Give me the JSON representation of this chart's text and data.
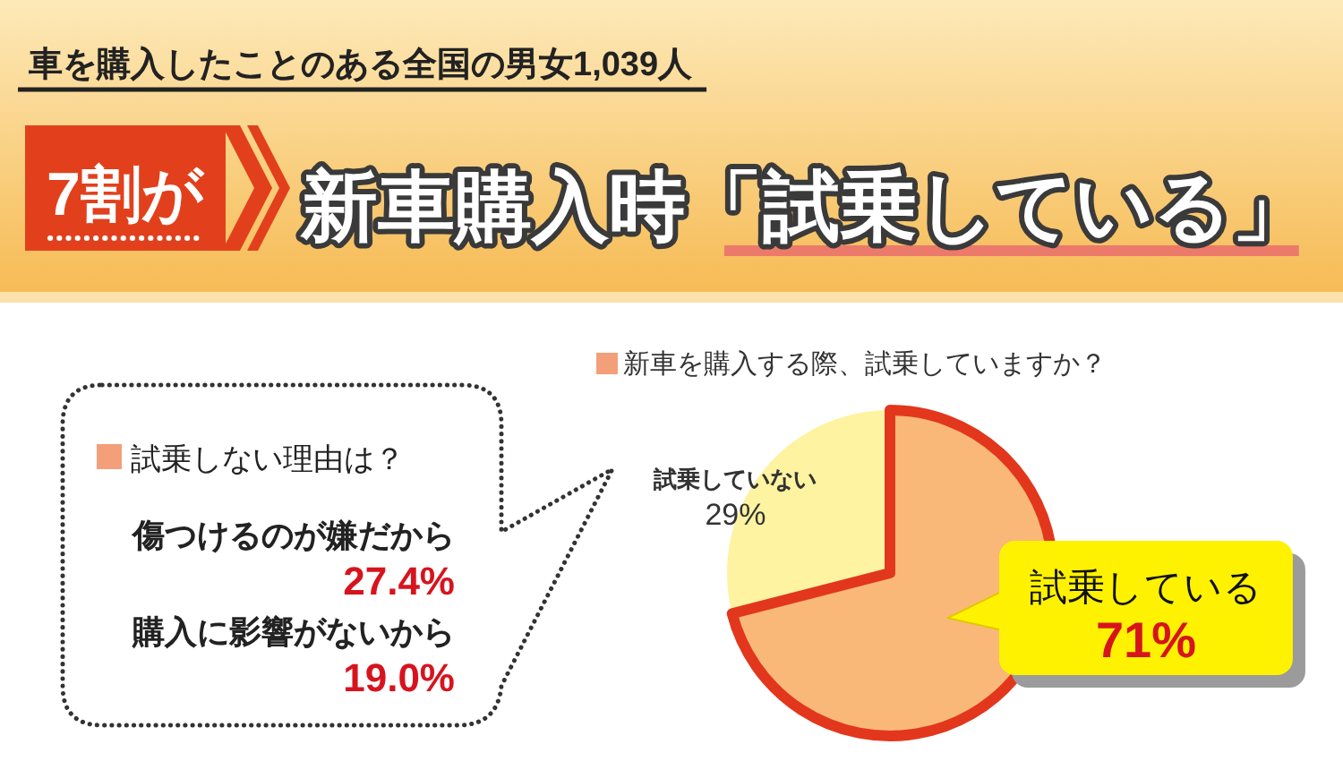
{
  "chart_data": [
    {
      "type": "pie",
      "title": "新車購入時「試乗している」",
      "subtitle": "車を購入したことのある全国の男女1,039人",
      "annotations": [
        "7割が",
        "新車を購入する際、試乗していますか？"
      ],
      "categories": [
        "試乗している",
        "試乗していない"
      ],
      "values": [
        71,
        29
      ],
      "colors": [
        "#f9b878",
        "#fdf3a0"
      ],
      "value_labels": [
        "71%",
        "29%"
      ]
    },
    {
      "type": "other",
      "title": "試乗しない理由は？",
      "annotations": [
        "傷つけるのが嫌だから",
        "27.4%",
        "購入に影響がないから",
        "19.0%"
      ]
    }
  ]
}
